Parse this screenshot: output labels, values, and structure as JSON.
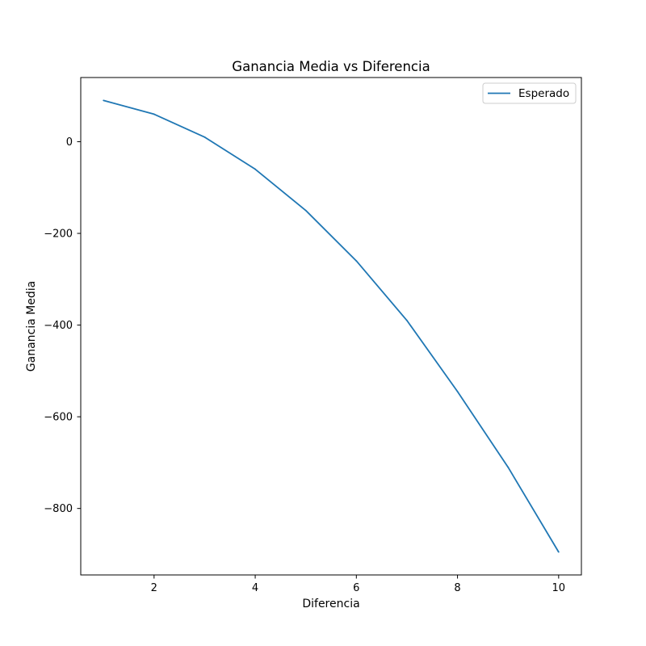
{
  "chart_data": {
    "type": "line",
    "title": "Ganancia Media vs Diferencia",
    "xlabel": "Diferencia",
    "ylabel": "Ganancia Media",
    "xlim": [
      0.55,
      10.45
    ],
    "ylim": [
      -945,
      140
    ],
    "xticks": [
      2,
      4,
      6,
      8,
      10
    ],
    "yticks": [
      0,
      -200,
      -400,
      -600,
      -800
    ],
    "xtick_labels": [
      "2",
      "4",
      "6",
      "8",
      "10"
    ],
    "ytick_labels": [
      "0",
      "−200",
      "−400",
      "−600",
      "−800"
    ],
    "grid": false,
    "legend_position": "top-right",
    "series": [
      {
        "name": "Esperado",
        "color": "#1f77b4",
        "x": [
          1,
          2,
          3,
          4,
          5,
          6,
          7,
          8,
          9,
          10
        ],
        "y": [
          90,
          60,
          10,
          -60,
          -150,
          -260,
          -390,
          -545,
          -710,
          -895
        ]
      }
    ]
  }
}
